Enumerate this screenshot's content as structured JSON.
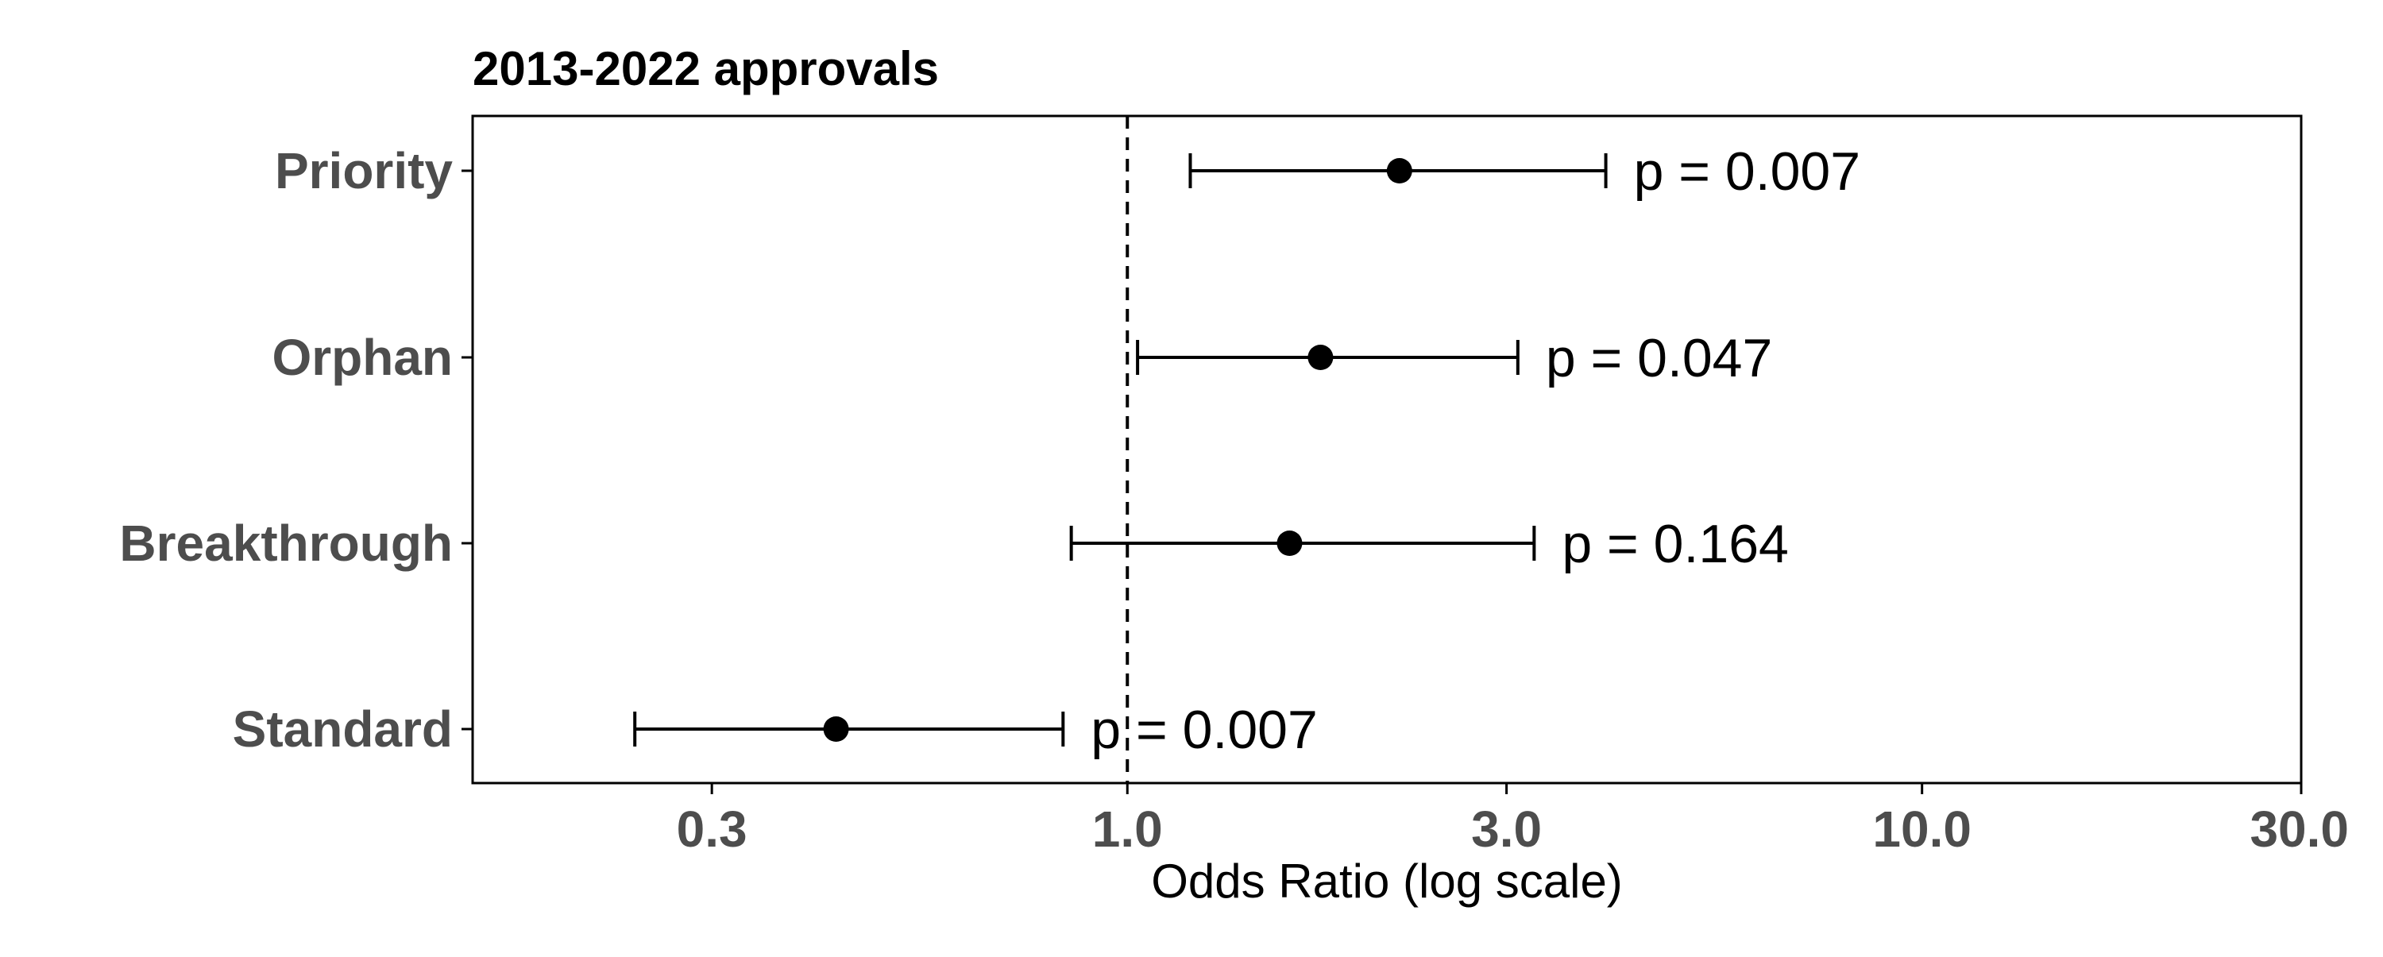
{
  "chart_data": {
    "type": "scatter",
    "subtype": "forest-plot",
    "title": "2013-2022 approvals",
    "xlabel": "Odds Ratio (log scale)",
    "ylabel": "",
    "x_scale": "log",
    "xlim": [
      0.15,
      30
    ],
    "x_ticks": [
      0.3,
      1.0,
      3.0,
      10.0,
      30.0
    ],
    "x_tick_labels": [
      "0.3",
      "1.0",
      "3.0",
      "10.0",
      "30.0"
    ],
    "reference_line": {
      "x": 1.0,
      "style": "dashed"
    },
    "grid": false,
    "legend": "none",
    "categories": [
      "Priority",
      "Orphan",
      "Breakthrough",
      "Standard"
    ],
    "series": [
      {
        "points": [
          {
            "category": "Priority",
            "estimate": 2.2,
            "ci_low": 1.2,
            "ci_high": 4.0,
            "p_label": "p = 0.007"
          },
          {
            "category": "Orphan",
            "estimate": 1.75,
            "ci_low": 1.03,
            "ci_high": 3.1,
            "p_label": "p = 0.047"
          },
          {
            "category": "Breakthrough",
            "estimate": 1.6,
            "ci_low": 0.85,
            "ci_high": 3.25,
            "p_label": "p = 0.164"
          },
          {
            "category": "Standard",
            "estimate": 0.43,
            "ci_low": 0.24,
            "ci_high": 0.83,
            "p_label": "p = 0.007"
          }
        ]
      }
    ],
    "colors": {
      "point": "#000000",
      "errorbar": "#000000",
      "axis_text": "#4d4d4d",
      "frame": "#000000"
    }
  }
}
